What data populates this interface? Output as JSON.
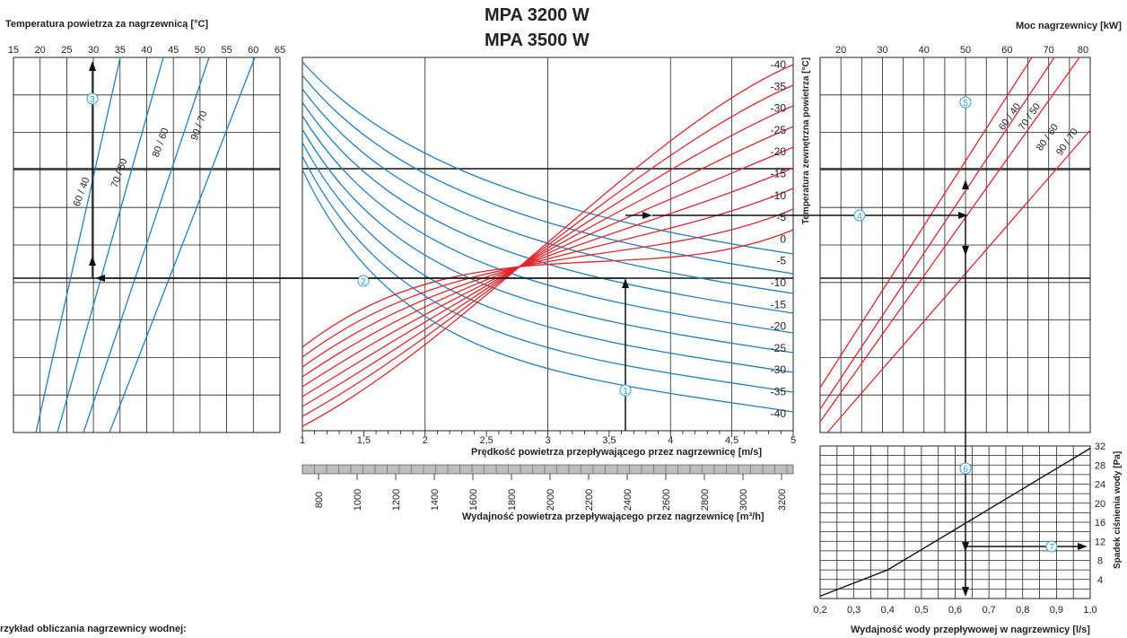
{
  "title": [
    "MPA 3200 W",
    "MPA 3500 W"
  ],
  "footnote": "rzykład obliczania nagrzewnicy wodnej:",
  "colors": {
    "blue": "#1f7fbf",
    "red": "#e2252b",
    "black": "#111111",
    "grid": "#222222",
    "marker": "#2aa0d8"
  },
  "chart_data": [
    {
      "type": "line",
      "id": "outlet-temperature",
      "xlabel": "Temperatura powietrza za nagrzewnicą [°C]",
      "x_ticks": [
        "15",
        "20",
        "25",
        "30",
        "35",
        "40",
        "45",
        "50",
        "55",
        "60",
        "65"
      ],
      "xlim": [
        15,
        65
      ],
      "series": [
        {
          "name": "60 / 40"
        },
        {
          "name": "70 / 50"
        },
        {
          "name": "80 / 60"
        },
        {
          "name": "90 / 70"
        }
      ],
      "grid": true
    },
    {
      "type": "line",
      "id": "main-chart",
      "xlabel": "Prędkość powietrza przepływającego przez nagrzewnicę [m/s]",
      "x_ticks": [
        "1",
        "1,5",
        "2",
        "2,5",
        "3",
        "3,5",
        "4",
        "4,5",
        "5"
      ],
      "xlim": [
        1,
        5
      ],
      "x2label": "Wydajność powietrza przepływającego przez nagrzewnicę [m³/h]",
      "x2_ticks": [
        "800",
        "1000",
        "1200",
        "1400",
        "1600",
        "1800",
        "2000",
        "2200",
        "2400",
        "2600",
        "2800",
        "3000",
        "3200"
      ],
      "ylabel": "Temperatura zewnętrzna powietrza [°C]",
      "y_ticks": [
        "-40",
        "-35",
        "-30",
        "-25",
        "-20",
        "-15",
        "-10",
        "-5",
        "0",
        "-5",
        "-10",
        "-15",
        "-20",
        "-25",
        "-30",
        "-35",
        "-40"
      ],
      "series_blue_count": 9,
      "series_red_count": 9,
      "grid": true
    },
    {
      "type": "line",
      "id": "heater-power",
      "xlabel": "Moc nagrzewnicy [kW]",
      "x_ticks": [
        "20",
        "30",
        "40",
        "50",
        "60",
        "70",
        "80"
      ],
      "xlim": [
        15,
        80
      ],
      "series": [
        {
          "name": "60 / 40"
        },
        {
          "name": "70 / 50"
        },
        {
          "name": "80 / 60"
        },
        {
          "name": "90 / 70"
        }
      ],
      "grid": true
    },
    {
      "type": "line",
      "id": "pressure-drop",
      "xlabel": "Wydajność wody przepływowej w nagrzewnicy  [l/s]",
      "x_ticks": [
        "0,2",
        "0,3",
        "0,4",
        "0,5",
        "0,6",
        "0,7",
        "0,8",
        "0,9",
        "1,0"
      ],
      "xlim": [
        0.2,
        1.0
      ],
      "ylabel": "Spadek ciśnienia wody [Pa]",
      "y_ticks": [
        "32",
        "28",
        "24",
        "20",
        "16",
        "12",
        "8",
        "4"
      ],
      "ylim": [
        0,
        32
      ],
      "series": [
        {
          "x": [
            0.2,
            0.4,
            0.6,
            0.8,
            1.0
          ],
          "y": [
            0.5,
            6,
            14.5,
            23,
            31.5
          ]
        }
      ],
      "grid": true
    }
  ],
  "markers": [
    "1",
    "2",
    "3",
    "4",
    "5",
    "6",
    "7"
  ]
}
